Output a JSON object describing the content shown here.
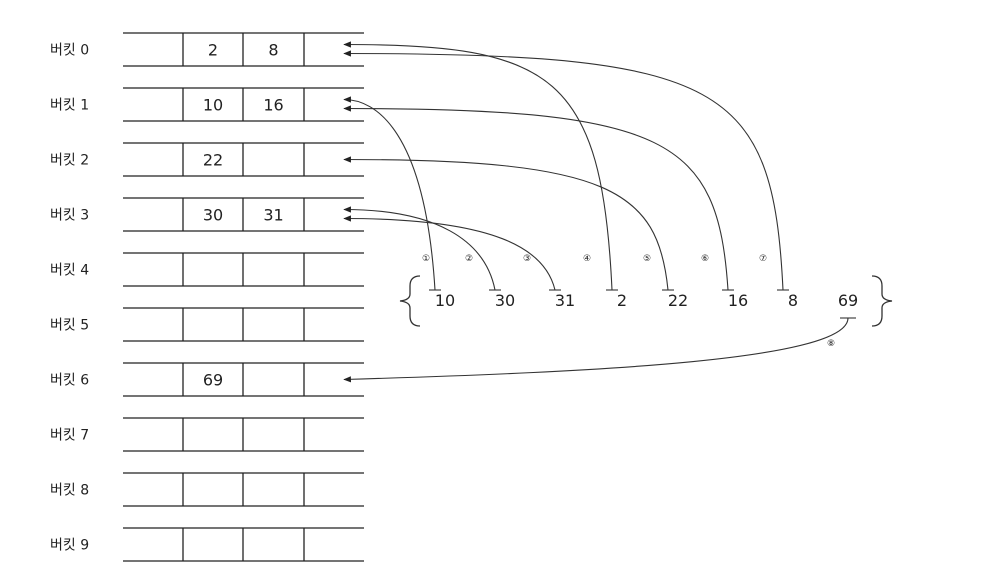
{
  "buckets": [
    {
      "label": "버킷 0",
      "values": [
        "",
        "2",
        "8",
        ""
      ]
    },
    {
      "label": "버킷 1",
      "values": [
        "",
        "10",
        "16",
        ""
      ]
    },
    {
      "label": "버킷 2",
      "values": [
        "",
        "22",
        "",
        ""
      ]
    },
    {
      "label": "버킷 3",
      "values": [
        "",
        "30",
        "31",
        ""
      ]
    },
    {
      "label": "버킷 4",
      "values": [
        "",
        "",
        "",
        ""
      ]
    },
    {
      "label": "버킷 5",
      "values": [
        "",
        "",
        "",
        ""
      ]
    },
    {
      "label": "버킷 6",
      "values": [
        "",
        "69",
        "",
        ""
      ]
    },
    {
      "label": "버킷 7",
      "values": [
        "",
        "",
        "",
        ""
      ]
    },
    {
      "label": "버킷 8",
      "values": [
        "",
        "",
        "",
        ""
      ]
    },
    {
      "label": "버킷 9",
      "values": [
        "",
        "",
        "",
        ""
      ]
    }
  ],
  "sequence": [
    {
      "value": "10",
      "step": "①",
      "bucket": 1
    },
    {
      "value": "30",
      "step": "②",
      "bucket": 3
    },
    {
      "value": "31",
      "step": "③",
      "bucket": 3
    },
    {
      "value": "2",
      "step": "④",
      "bucket": 0
    },
    {
      "value": "22",
      "step": "⑤",
      "bucket": 2
    },
    {
      "value": "16",
      "step": "⑥",
      "bucket": 1
    },
    {
      "value": "8",
      "step": "⑦",
      "bucket": 0
    },
    {
      "value": "69",
      "step": "⑧",
      "bucket": 6
    }
  ]
}
